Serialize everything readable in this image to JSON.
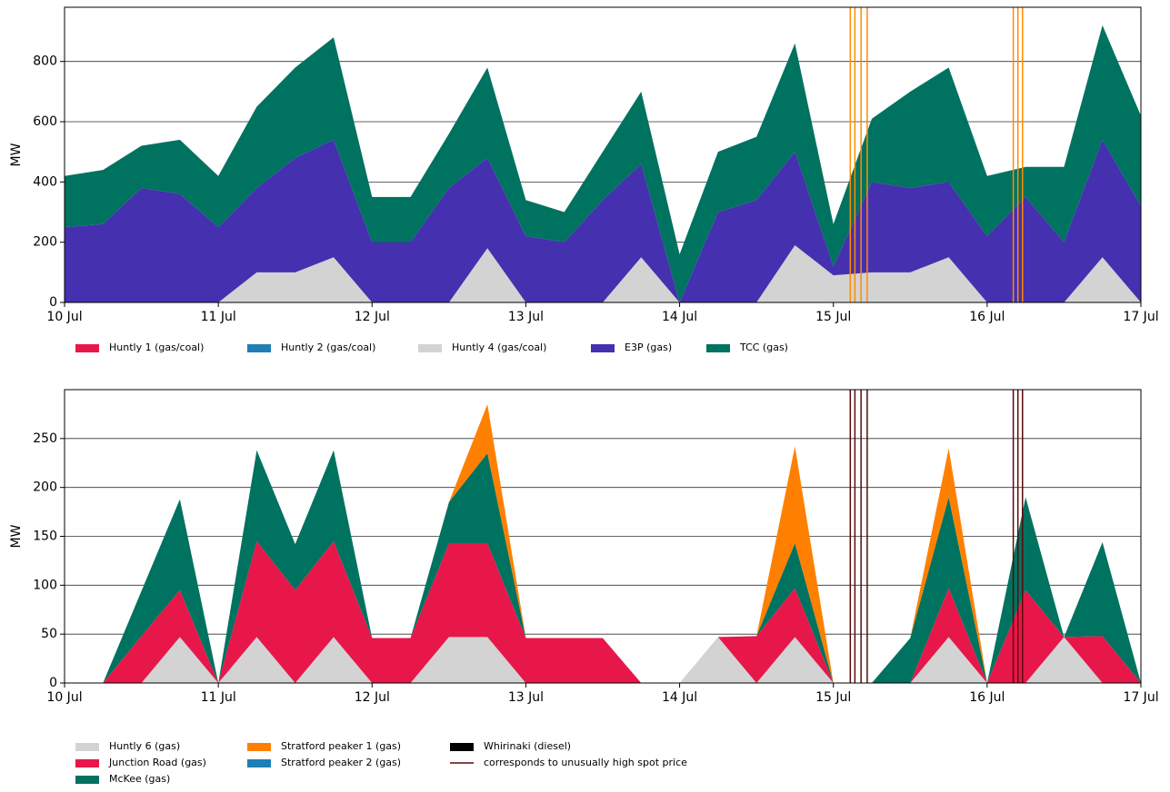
{
  "chart_data": [
    {
      "type": "area",
      "stacked": true,
      "ylabel": "MW",
      "x": [
        0,
        0.25,
        0.5,
        0.75,
        1,
        1.25,
        1.5,
        1.75,
        2,
        2.25,
        2.5,
        2.75,
        3,
        3.25,
        3.5,
        3.75,
        4,
        4.25,
        4.5,
        4.75,
        5,
        5.25,
        5.5,
        5.75,
        6,
        6.25,
        6.5,
        6.75,
        7
      ],
      "xlim": [
        0,
        7
      ],
      "xticks": [
        {
          "value": 0,
          "label": "10 Jul"
        },
        {
          "value": 1,
          "label": "11 Jul"
        },
        {
          "value": 2,
          "label": "12 Jul"
        },
        {
          "value": 3,
          "label": "13 Jul"
        },
        {
          "value": 4,
          "label": "14 Jul"
        },
        {
          "value": 5,
          "label": "15 Jul"
        },
        {
          "value": 6,
          "label": "16 Jul"
        },
        {
          "value": 7,
          "label": "17 Jul"
        }
      ],
      "ylim": [
        0,
        980
      ],
      "yticks": [
        0,
        200,
        400,
        600,
        800
      ],
      "grid": true,
      "series": [
        {
          "name": "Huntly 1 (gas/coal)",
          "color": "#e8174a",
          "values": [
            0,
            0,
            0,
            0,
            0,
            0,
            0,
            0,
            0,
            0,
            0,
            0,
            0,
            0,
            0,
            0,
            0,
            0,
            0,
            0,
            0,
            0,
            0,
            0,
            0,
            0,
            0,
            0,
            0
          ]
        },
        {
          "name": "Huntly 2 (gas/coal)",
          "color": "#1f7fb5",
          "values": [
            0,
            0,
            0,
            0,
            0,
            0,
            0,
            0,
            0,
            0,
            0,
            0,
            0,
            0,
            0,
            0,
            0,
            0,
            0,
            0,
            0,
            0,
            0,
            0,
            0,
            0,
            0,
            0,
            0
          ]
        },
        {
          "name": "Huntly 4 (gas/coal)",
          "color": "#d3d3d3",
          "values": [
            0,
            0,
            0,
            0,
            0,
            100,
            100,
            150,
            0,
            0,
            0,
            180,
            0,
            0,
            0,
            150,
            0,
            0,
            0,
            190,
            90,
            100,
            100,
            150,
            0,
            0,
            0,
            150,
            0
          ]
        },
        {
          "name": "E3P (gas)",
          "color": "#4530b0",
          "values": [
            250,
            260,
            380,
            360,
            250,
            280,
            380,
            390,
            200,
            200,
            380,
            300,
            220,
            200,
            340,
            310,
            0,
            300,
            340,
            310,
            30,
            300,
            280,
            250,
            220,
            350,
            200,
            390,
            320
          ]
        },
        {
          "name": "TCC (gas)",
          "color": "#007260",
          "values": [
            170,
            180,
            140,
            180,
            170,
            270,
            300,
            340,
            150,
            150,
            180,
            300,
            120,
            100,
            160,
            240,
            160,
            200,
            210,
            360,
            140,
            210,
            320,
            380,
            200,
            100,
            250,
            380,
            300
          ]
        }
      ],
      "high_price_times": [
        5.11,
        5.14,
        5.18,
        5.22,
        6.17,
        6.2,
        6.23
      ],
      "marker_color": "#ff8c00"
    },
    {
      "type": "area",
      "stacked": true,
      "ylabel": "MW",
      "x": [
        0,
        0.25,
        0.5,
        0.75,
        1,
        1.25,
        1.5,
        1.75,
        2,
        2.25,
        2.5,
        2.75,
        3,
        3.25,
        3.5,
        3.75,
        4,
        4.25,
        4.5,
        4.75,
        5,
        5.25,
        5.5,
        5.75,
        6,
        6.25,
        6.5,
        6.75,
        7
      ],
      "xlim": [
        0,
        7
      ],
      "xticks": [
        {
          "value": 0,
          "label": "10 Jul"
        },
        {
          "value": 1,
          "label": "11 Jul"
        },
        {
          "value": 2,
          "label": "12 Jul"
        },
        {
          "value": 3,
          "label": "13 Jul"
        },
        {
          "value": 4,
          "label": "14 Jul"
        },
        {
          "value": 5,
          "label": "15 Jul"
        },
        {
          "value": 6,
          "label": "16 Jul"
        },
        {
          "value": 7,
          "label": "17 Jul"
        }
      ],
      "ylim": [
        0,
        300
      ],
      "yticks": [
        0,
        50,
        100,
        150,
        200,
        250
      ],
      "grid": true,
      "series": [
        {
          "name": "Huntly 6 (gas)",
          "color": "#d3d3d3",
          "values": [
            0,
            0,
            0,
            47,
            0,
            47,
            0,
            47,
            0,
            0,
            47,
            47,
            0,
            0,
            0,
            0,
            0,
            47,
            0,
            47,
            0,
            0,
            0,
            47,
            0,
            0,
            47,
            0,
            0
          ]
        },
        {
          "name": "Junction Road (gas)",
          "color": "#e8174a",
          "values": [
            0,
            0,
            48,
            48,
            0,
            98,
            95,
            98,
            46,
            46,
            96,
            96,
            46,
            46,
            46,
            0,
            0,
            0,
            48,
            50,
            0,
            0,
            0,
            50,
            0,
            95,
            0,
            48,
            0
          ]
        },
        {
          "name": "McKee (gas)",
          "color": "#007260",
          "values": [
            0,
            0,
            46,
            93,
            0,
            93,
            47,
            93,
            0,
            0,
            42,
            92,
            0,
            0,
            0,
            0,
            0,
            0,
            0,
            46,
            0,
            0,
            46,
            93,
            0,
            95,
            0,
            96,
            0
          ]
        },
        {
          "name": "Stratford peaker 1 (gas)",
          "color": "#ff8000",
          "values": [
            0,
            0,
            0,
            0,
            0,
            0,
            0,
            0,
            0,
            0,
            0,
            50,
            0,
            0,
            0,
            0,
            0,
            0,
            0,
            99,
            0,
            0,
            0,
            50,
            0,
            0,
            0,
            0,
            0
          ]
        },
        {
          "name": "Stratford peaker 2 (gas)",
          "color": "#1f7fb5",
          "values": [
            0,
            0,
            0,
            0,
            0,
            0,
            0,
            0,
            0,
            0,
            0,
            0,
            0,
            0,
            0,
            0,
            0,
            0,
            0,
            0,
            0,
            0,
            0,
            0,
            0,
            0,
            0,
            0,
            0
          ]
        },
        {
          "name": "Whirinaki (diesel)",
          "color": "#000000",
          "values": [
            0,
            0,
            0,
            0,
            0,
            0,
            0,
            0,
            0,
            0,
            0,
            0,
            0,
            0,
            0,
            0,
            0,
            0,
            0,
            0,
            0,
            0,
            0,
            0,
            0,
            0,
            0,
            0,
            0
          ]
        }
      ],
      "high_price_times": [
        5.11,
        5.14,
        5.18,
        5.22,
        6.17,
        6.2,
        6.23
      ],
      "marker_color": "#5a0a0a",
      "marker_label": "corresponds to unusually high spot price"
    }
  ]
}
